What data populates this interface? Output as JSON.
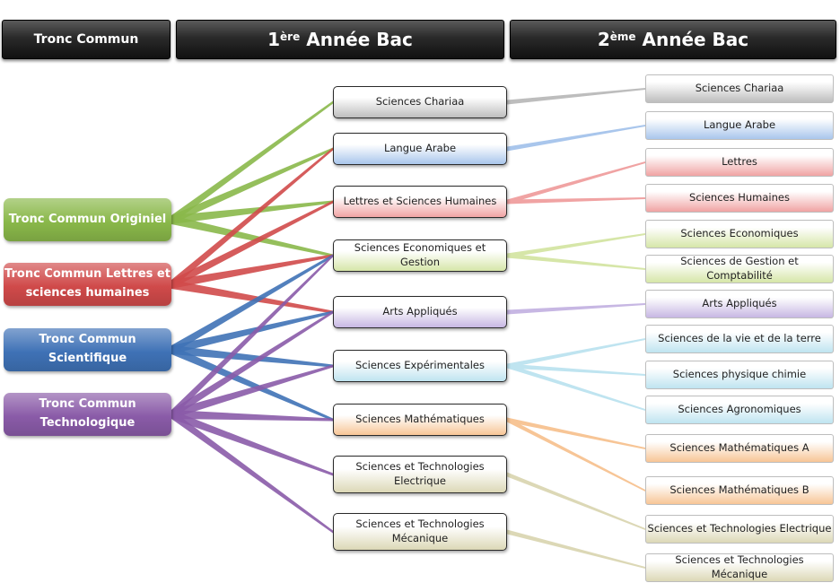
{
  "headers": {
    "col1": "Tronc Commun",
    "col2_num": "1",
    "col2_sup": "ère",
    "col2_rest": " Année Bac",
    "col3_num": "2",
    "col3_sup": "ème",
    "col3_rest": " Année Bac"
  },
  "tronc_commun": [
    {
      "label": "Tronc Commun Originiel",
      "color": "#8ab84a"
    },
    {
      "label": "Tronc Commun Lettres et sciences humaines",
      "color": "#d04a4a"
    },
    {
      "label": "Tronc Commun Scientifique",
      "color": "#3f72b6"
    },
    {
      "label": "Tronc Commun Technologique",
      "color": "#8a5ba8"
    }
  ],
  "premiere": [
    {
      "label": "Sciences Chariaa",
      "color": "#bdbdbd"
    },
    {
      "label": "Langue Arabe",
      "color": "#a9c6ec"
    },
    {
      "label": "Lettres et Sciences Humaines",
      "color": "#f0a3a3"
    },
    {
      "label": "Sciences Economiques et Gestion",
      "color": "#d6e6a8"
    },
    {
      "label": "Arts Appliqués",
      "color": "#c7b7e3"
    },
    {
      "label": "Sciences Expérimentales",
      "color": "#bfe4f0"
    },
    {
      "label": "Sciences Mathématiques",
      "color": "#f7c596"
    },
    {
      "label": "Sciences et Technologies Electrique",
      "color": "#dcd8b6"
    },
    {
      "label": "Sciences et Technologies Mécanique",
      "color": "#dcd8b6"
    }
  ],
  "deuxieme": [
    {
      "label": "Sciences Chariaa",
      "color": "#bdbdbd"
    },
    {
      "label": "Langue Arabe",
      "color": "#a9c6ec"
    },
    {
      "label": "Lettres",
      "color": "#f0a3a3"
    },
    {
      "label": "Sciences Humaines",
      "color": "#f0a3a3"
    },
    {
      "label": "Sciences Economiques",
      "color": "#d6e6a8"
    },
    {
      "label": "Sciences de Gestion et Comptabilité",
      "color": "#d6e6a8"
    },
    {
      "label": "Arts Appliqués",
      "color": "#c7b7e3"
    },
    {
      "label": "Sciences de la vie et de la terre",
      "color": "#bfe4f0"
    },
    {
      "label": "Sciences physique chimie",
      "color": "#bfe4f0"
    },
    {
      "label": "Sciences Agronomiques",
      "color": "#bfe4f0"
    },
    {
      "label": "Sciences Mathématiques A",
      "color": "#f7c596"
    },
    {
      "label": "Sciences Mathématiques B",
      "color": "#f7c596"
    },
    {
      "label": "Sciences et Technologies Electrique",
      "color": "#dcd8b6"
    },
    {
      "label": "Sciences et Technologies Mécanique",
      "color": "#dcd8b6"
    }
  ],
  "links_tc": [
    [
      0,
      0
    ],
    [
      0,
      1
    ],
    [
      0,
      2
    ],
    [
      0,
      3
    ],
    [
      1,
      1
    ],
    [
      1,
      2
    ],
    [
      1,
      3
    ],
    [
      1,
      4
    ],
    [
      2,
      3
    ],
    [
      2,
      4
    ],
    [
      2,
      5
    ],
    [
      2,
      6
    ],
    [
      3,
      3
    ],
    [
      3,
      4
    ],
    [
      3,
      5
    ],
    [
      3,
      6
    ],
    [
      3,
      7
    ],
    [
      3,
      8
    ]
  ],
  "links_year": [
    [
      0,
      0
    ],
    [
      1,
      1
    ],
    [
      2,
      2
    ],
    [
      2,
      3
    ],
    [
      3,
      4
    ],
    [
      3,
      5
    ],
    [
      4,
      6
    ],
    [
      5,
      7
    ],
    [
      5,
      8
    ],
    [
      5,
      9
    ],
    [
      6,
      10
    ],
    [
      6,
      11
    ],
    [
      7,
      12
    ],
    [
      8,
      13
    ]
  ]
}
